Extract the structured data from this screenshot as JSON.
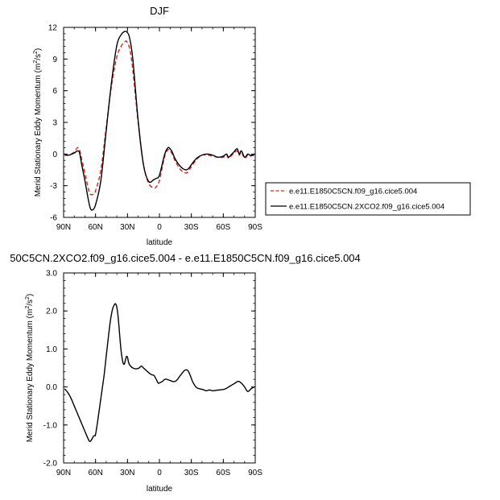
{
  "chart_data": [
    {
      "type": "line",
      "title": "DJF",
      "xlabel": "latitude",
      "ylabel_main": "Merid Stationary Eddy Momentum (m",
      "ylabel_sup1": "2",
      "ylabel_mid": "/s",
      "ylabel_sup2": "2",
      "ylabel_end": ")",
      "xlim": [
        90,
        -90
      ],
      "ylim": [
        -6,
        12
      ],
      "x_ticks": [
        90,
        60,
        30,
        0,
        -30,
        -60,
        -90
      ],
      "x_tick_labels": [
        "90N",
        "60N",
        "30N",
        "0",
        "30S",
        "60S",
        "90S"
      ],
      "y_ticks": [
        -6,
        -3,
        0,
        3,
        6,
        9,
        12
      ],
      "y_tick_labels": [
        "-6",
        "-3",
        "0",
        "3",
        "6",
        "9",
        "12"
      ],
      "legend_position": "right-outside",
      "series": [
        {
          "name": "e.e11.E1850C5CN.f09_g16.cice5.004",
          "color": "#e0201b",
          "style": "dashed",
          "x": [
            89,
            85,
            80,
            77,
            75,
            73,
            70,
            67,
            65,
            62,
            60,
            55,
            50,
            45,
            40,
            36,
            33,
            31,
            30,
            28,
            25,
            20,
            15,
            10,
            5,
            3,
            0,
            -5,
            -8,
            -10,
            -12,
            -15,
            -20,
            -25,
            -28,
            -30,
            -35,
            -40,
            -45,
            -50,
            -55,
            -60,
            -63,
            -65,
            -68,
            -70,
            -73,
            -75,
            -77,
            -80,
            -83,
            -85,
            -89
          ],
          "y": [
            -0.1,
            -0.1,
            0.2,
            0.6,
            0.4,
            -0.5,
            -1.8,
            -3.2,
            -3.8,
            -3.8,
            -3.5,
            -1.5,
            2.5,
            6.5,
            9.2,
            10.2,
            10.6,
            10.7,
            10.5,
            10.0,
            8.0,
            3.0,
            -1.0,
            -2.8,
            -3.2,
            -3.1,
            -2.5,
            -0.2,
            0.4,
            0.3,
            0.0,
            -0.7,
            -1.5,
            -1.8,
            -1.5,
            -1.2,
            -0.5,
            -0.1,
            -0.1,
            -0.2,
            -0.3,
            -0.3,
            -0.1,
            -0.4,
            -0.1,
            0.1,
            0.3,
            -0.1,
            0.2,
            -0.4,
            -0.1,
            -0.2,
            -0.1
          ]
        },
        {
          "name": "e.e11.E1850C5CN.2XCO2.f09_g16.cice5.004",
          "color": "#000000",
          "style": "solid",
          "x": [
            89,
            85,
            80,
            77,
            75,
            73,
            70,
            67,
            65,
            63,
            60,
            55,
            50,
            45,
            40,
            36,
            33,
            31,
            30,
            28,
            25,
            20,
            15,
            10,
            5,
            3,
            0,
            -5,
            -8,
            -10,
            -12,
            -15,
            -20,
            -25,
            -28,
            -30,
            -35,
            -40,
            -45,
            -50,
            -55,
            -60,
            -63,
            -65,
            -68,
            -70,
            -73,
            -75,
            -77,
            -80,
            -83,
            -85,
            -89
          ],
          "y": [
            -0.1,
            -0.1,
            0.1,
            0.3,
            0.1,
            -1.0,
            -2.5,
            -4.2,
            -5.1,
            -5.3,
            -4.8,
            -2.5,
            2.2,
            6.8,
            10.3,
            11.3,
            11.6,
            11.6,
            11.5,
            11.0,
            9.0,
            3.2,
            -1.0,
            -2.6,
            -2.4,
            -2.3,
            -2.0,
            0.0,
            0.6,
            0.5,
            0.2,
            -0.5,
            -1.2,
            -1.5,
            -1.3,
            -1.0,
            -0.4,
            -0.1,
            0.0,
            -0.1,
            -0.3,
            -0.2,
            0.0,
            -0.3,
            0.0,
            0.2,
            0.5,
            0.0,
            0.3,
            -0.3,
            0.0,
            -0.1,
            -0.1
          ]
        }
      ]
    },
    {
      "type": "line",
      "title": "50C5CN.2XCO2.f09_g16.cice5.004 - e.e11.E1850C5CN.f09_g16.cice5.004",
      "xlabel": "latitude",
      "ylabel_main": "Merid Stationary Eddy Momentum (m",
      "ylabel_sup1": "2",
      "ylabel_mid": "/s",
      "ylabel_sup2": "2",
      "ylabel_end": ")",
      "xlim": [
        90,
        -90
      ],
      "ylim": [
        -2.0,
        3.0
      ],
      "x_ticks": [
        90,
        60,
        30,
        0,
        -30,
        -60,
        -90
      ],
      "x_tick_labels": [
        "90N",
        "60N",
        "30N",
        "0",
        "30S",
        "60S",
        "90S"
      ],
      "y_ticks": [
        -2.0,
        -1.0,
        0.0,
        1.0,
        2.0,
        3.0
      ],
      "y_tick_labels": [
        "-2.0",
        "-1.0",
        "0.0",
        "1.0",
        "2.0",
        "3.0"
      ],
      "series": [
        {
          "color": "#000000",
          "style": "solid",
          "x": [
            89,
            86,
            83,
            80,
            77,
            74,
            71,
            68,
            66,
            65,
            64,
            63,
            62,
            61,
            60,
            58,
            56,
            54,
            52,
            50,
            48,
            46,
            44,
            42,
            41,
            40,
            39,
            38,
            37,
            36,
            35,
            34,
            33,
            32,
            31,
            30,
            29,
            28,
            27,
            26,
            25,
            23,
            21,
            19,
            17,
            15,
            13,
            11,
            9,
            7,
            5,
            3,
            1,
            -1,
            -3,
            -5,
            -7,
            -9,
            -11,
            -13,
            -15,
            -17,
            -19,
            -21,
            -23,
            -25,
            -27,
            -29,
            -31,
            -33,
            -35,
            -38,
            -41,
            -44,
            -47,
            -50,
            -53,
            -56,
            -59,
            -62,
            -65,
            -68,
            -71,
            -74,
            -77,
            -80,
            -83,
            -86,
            -89
          ],
          "y": [
            -0.05,
            -0.15,
            -0.3,
            -0.5,
            -0.7,
            -0.9,
            -1.1,
            -1.3,
            -1.42,
            -1.43,
            -1.4,
            -1.35,
            -1.3,
            -1.28,
            -1.25,
            -0.9,
            -0.5,
            -0.1,
            0.3,
            0.8,
            1.3,
            1.75,
            2.05,
            2.18,
            2.18,
            2.1,
            1.9,
            1.6,
            1.25,
            0.95,
            0.75,
            0.62,
            0.6,
            0.7,
            0.8,
            0.78,
            0.65,
            0.58,
            0.55,
            0.52,
            0.5,
            0.48,
            0.48,
            0.5,
            0.55,
            0.5,
            0.45,
            0.4,
            0.35,
            0.32,
            0.3,
            0.2,
            0.1,
            0.12,
            0.15,
            0.2,
            0.2,
            0.18,
            0.16,
            0.14,
            0.15,
            0.2,
            0.28,
            0.35,
            0.42,
            0.45,
            0.42,
            0.3,
            0.15,
            0.05,
            -0.02,
            -0.05,
            -0.07,
            -0.1,
            -0.08,
            -0.1,
            -0.09,
            -0.08,
            -0.07,
            -0.05,
            0.0,
            0.05,
            0.1,
            0.15,
            0.1,
            0.0,
            -0.12,
            -0.05,
            0.0
          ]
        }
      ]
    }
  ]
}
